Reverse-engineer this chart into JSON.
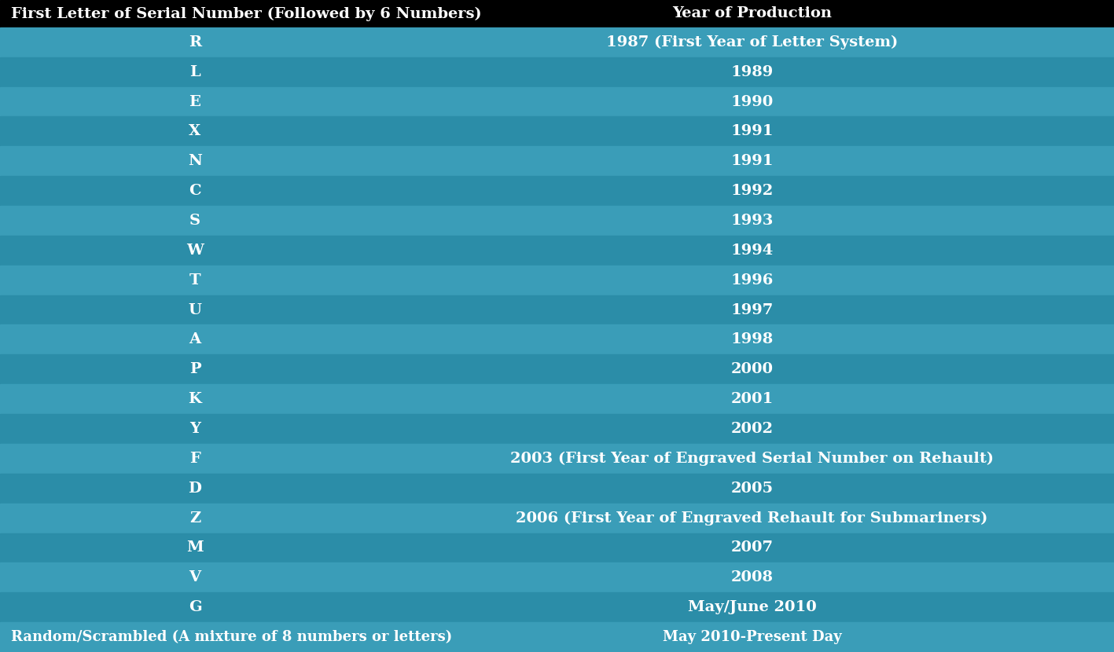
{
  "title_col1": "First Letter of Serial Number (Followed by 6 Numbers)",
  "title_col2": "Year of Production",
  "header_bg": "#000000",
  "header_text_color": "#ffffff",
  "header_fontsize": 14,
  "row_fontsize": 14,
  "rows": [
    [
      "R",
      "1987 (First Year of Letter System)"
    ],
    [
      "L",
      "1989"
    ],
    [
      "E",
      "1990"
    ],
    [
      "X",
      "1991"
    ],
    [
      "N",
      "1991"
    ],
    [
      "C",
      "1992"
    ],
    [
      "S",
      "1993"
    ],
    [
      "W",
      "1994"
    ],
    [
      "T",
      "1996"
    ],
    [
      "U",
      "1997"
    ],
    [
      "A",
      "1998"
    ],
    [
      "P",
      "2000"
    ],
    [
      "K",
      "2001"
    ],
    [
      "Y",
      "2002"
    ],
    [
      "F",
      "2003 (First Year of Engraved Serial Number on Rehault)"
    ],
    [
      "D",
      "2005"
    ],
    [
      "Z",
      "2006 (First Year of Engraved Rehault for Submariners)"
    ],
    [
      "M",
      "2007"
    ],
    [
      "V",
      "2008"
    ],
    [
      "G",
      "May/June 2010"
    ],
    [
      "Random/Scrambled (A mixture of 8 numbers or letters)",
      "May 2010-Present Day"
    ]
  ],
  "row_color_light": "#3a9db8",
  "row_color_dark": "#2b8da8",
  "text_color": "#ffffff",
  "col_split": 0.35,
  "figure_bg": "#3a9db8",
  "fig_width": 14.17,
  "fig_height": 8.3,
  "dpi": 100
}
